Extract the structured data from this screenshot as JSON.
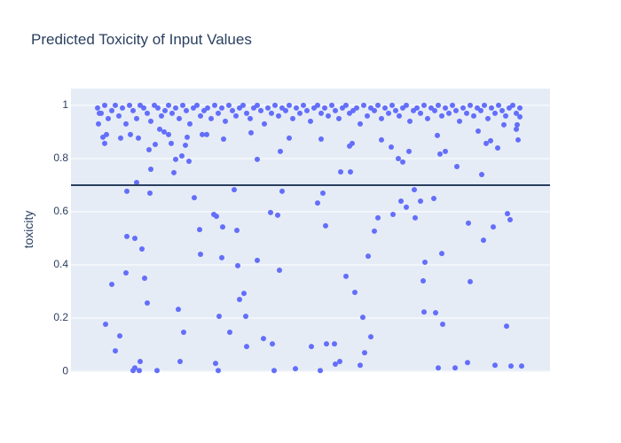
{
  "chart_data": {
    "type": "scatter",
    "title": "Predicted Toxicity of Input Values",
    "y_label": "toxicity",
    "color": "#636efa",
    "threshold": 0.7,
    "threshold_color": "#2a3f5f",
    "grid": true,
    "xlim": [
      -30,
      510
    ],
    "ylim": [
      -0.003,
      1.063
    ],
    "yticks": [
      0,
      0.2,
      0.4,
      0.6,
      0.8,
      1
    ],
    "x": [
      1,
      2,
      6,
      8,
      10,
      9,
      16,
      20,
      25,
      26,
      32,
      33,
      33,
      37,
      42,
      40,
      42,
      44,
      46,
      47,
      48,
      50,
      53,
      56,
      58,
      59,
      60,
      65,
      67,
      70,
      75,
      80,
      83,
      86,
      88,
      91,
      93,
      95,
      97,
      99,
      101,
      103,
      109,
      115,
      116,
      118,
      123,
      131,
      133,
      134,
      136,
      137,
      140,
      141,
      142,
      149,
      154,
      157,
      158,
      160,
      165,
      167,
      168,
      173,
      180,
      180,
      187,
      195,
      197,
      199,
      203,
      205,
      206,
      208,
      216,
      223,
      241,
      248,
      251,
      252,
      254,
      257,
      258,
      267,
      268,
      273,
      274,
      280,
      284,
      285,
      287,
      290,
      296,
      299,
      301,
      305,
      308,
      312,
      316,
      320,
      331,
      333,
      339,
      342,
      344,
      348,
      351,
      357,
      358,
      364,
      367,
      369,
      368,
      379,
      381,
      383,
      384,
      386,
      388,
      389,
      392,
      403,
      405,
      418,
      420,
      417,
      429,
      433,
      435,
      438,
      443,
      446,
      448,
      451,
      458,
      461,
      462,
      465,
      466,
      472,
      473,
      474,
      476,
      478,
      0,
      4,
      8,
      12,
      16,
      20,
      24,
      28,
      32,
      36,
      40,
      44,
      48,
      52,
      56,
      60,
      64,
      68,
      72,
      76,
      80,
      84,
      88,
      92,
      96,
      100,
      104,
      108,
      112,
      116,
      120,
      124,
      128,
      132,
      136,
      140,
      144,
      148,
      152,
      156,
      160,
      164,
      168,
      172,
      176,
      180,
      184,
      188,
      192,
      196,
      200,
      204,
      208,
      212,
      216,
      220,
      224,
      228,
      232,
      236,
      240,
      244,
      248,
      252,
      256,
      260,
      264,
      268,
      272,
      276,
      280,
      284,
      288,
      292,
      296,
      300,
      304,
      308,
      312,
      316,
      320,
      324,
      328,
      332,
      336,
      340,
      344,
      348,
      352,
      356,
      360,
      364,
      368,
      372,
      376,
      380,
      384,
      388,
      392,
      396,
      400,
      404,
      408,
      412,
      416,
      420,
      424,
      428,
      432,
      436,
      440,
      444,
      448,
      452,
      456,
      460,
      464,
      468,
      472,
      476
    ],
    "values": [
      0.93,
      0.97,
      0.88,
      0.857,
      0.89,
      0.177,
      0.327,
      0.077,
      0.133,
      0.877,
      0.37,
      0.677,
      0.507,
      0.89,
      0.5,
      0.003,
      0.013,
      0.71,
      0.877,
      0.003,
      0.037,
      0.46,
      0.35,
      0.257,
      0.833,
      0.67,
      0.76,
      0.853,
      0.003,
      0.91,
      0.9,
      0.89,
      0.857,
      0.747,
      0.797,
      0.233,
      0.037,
      0.81,
      0.147,
      0.85,
      0.88,
      0.79,
      0.653,
      0.533,
      0.44,
      0.89,
      0.89,
      0.59,
      0.03,
      0.583,
      0.003,
      0.207,
      0.427,
      0.543,
      0.873,
      0.147,
      0.683,
      0.53,
      0.397,
      0.27,
      0.293,
      0.207,
      0.093,
      0.897,
      0.797,
      0.417,
      0.123,
      0.597,
      0.103,
      0.003,
      0.587,
      0.38,
      0.827,
      0.677,
      0.877,
      0.01,
      0.093,
      0.633,
      0.003,
      0.873,
      0.67,
      0.547,
      0.103,
      0.103,
      0.027,
      0.037,
      0.75,
      0.357,
      0.847,
      0.75,
      0.857,
      0.297,
      0.023,
      0.203,
      0.07,
      0.433,
      0.13,
      0.527,
      0.577,
      0.87,
      0.843,
      0.59,
      0.8,
      0.64,
      0.787,
      0.617,
      0.827,
      0.683,
      0.577,
      0.64,
      0.34,
      0.41,
      0.223,
      0.65,
      0.22,
      0.887,
      0.013,
      0.817,
      0.443,
      0.177,
      0.827,
      0.013,
      0.77,
      0.557,
      0.337,
      0.033,
      0.903,
      0.74,
      0.493,
      0.857,
      0.867,
      0.543,
      0.023,
      0.84,
      0.927,
      0.17,
      0.593,
      0.57,
      0.02,
      0.91,
      0.927,
      0.87,
      0.957,
      0.02,
      0.99,
      0.97,
      1.0,
      0.95,
      0.98,
      1.0,
      0.96,
      0.99,
      0.93,
      1.0,
      0.98,
      0.95,
      1.0,
      0.99,
      0.97,
      0.94,
      1.0,
      0.99,
      0.96,
      0.98,
      1.0,
      0.97,
      0.99,
      0.95,
      1.0,
      0.98,
      0.93,
      0.99,
      1.0,
      0.96,
      0.98,
      0.99,
      0.95,
      1.0,
      0.97,
      0.99,
      0.94,
      1.0,
      0.98,
      0.96,
      0.99,
      1.0,
      0.97,
      0.95,
      0.99,
      1.0,
      0.98,
      0.93,
      0.99,
      0.97,
      1.0,
      0.96,
      0.99,
      0.98,
      1.0,
      0.95,
      0.99,
      0.97,
      1.0,
      0.98,
      0.94,
      0.99,
      1.0,
      0.97,
      0.99,
      0.96,
      1.0,
      0.98,
      0.95,
      0.99,
      1.0,
      0.97,
      0.98,
      0.99,
      0.93,
      1.0,
      0.96,
      0.99,
      0.98,
      1.0,
      0.95,
      0.99,
      0.97,
      1.0,
      0.98,
      0.96,
      0.99,
      1.0,
      0.94,
      0.98,
      0.99,
      0.97,
      1.0,
      0.95,
      0.99,
      0.98,
      1.0,
      0.96,
      0.99,
      0.97,
      1.0,
      0.98,
      0.94,
      0.99,
      0.97,
      1.0,
      0.96,
      0.99,
      0.98,
      1.0,
      0.95,
      0.99,
      0.97,
      1.0,
      0.98,
      0.96,
      0.99,
      1.0,
      0.97,
      0.99
    ]
  }
}
